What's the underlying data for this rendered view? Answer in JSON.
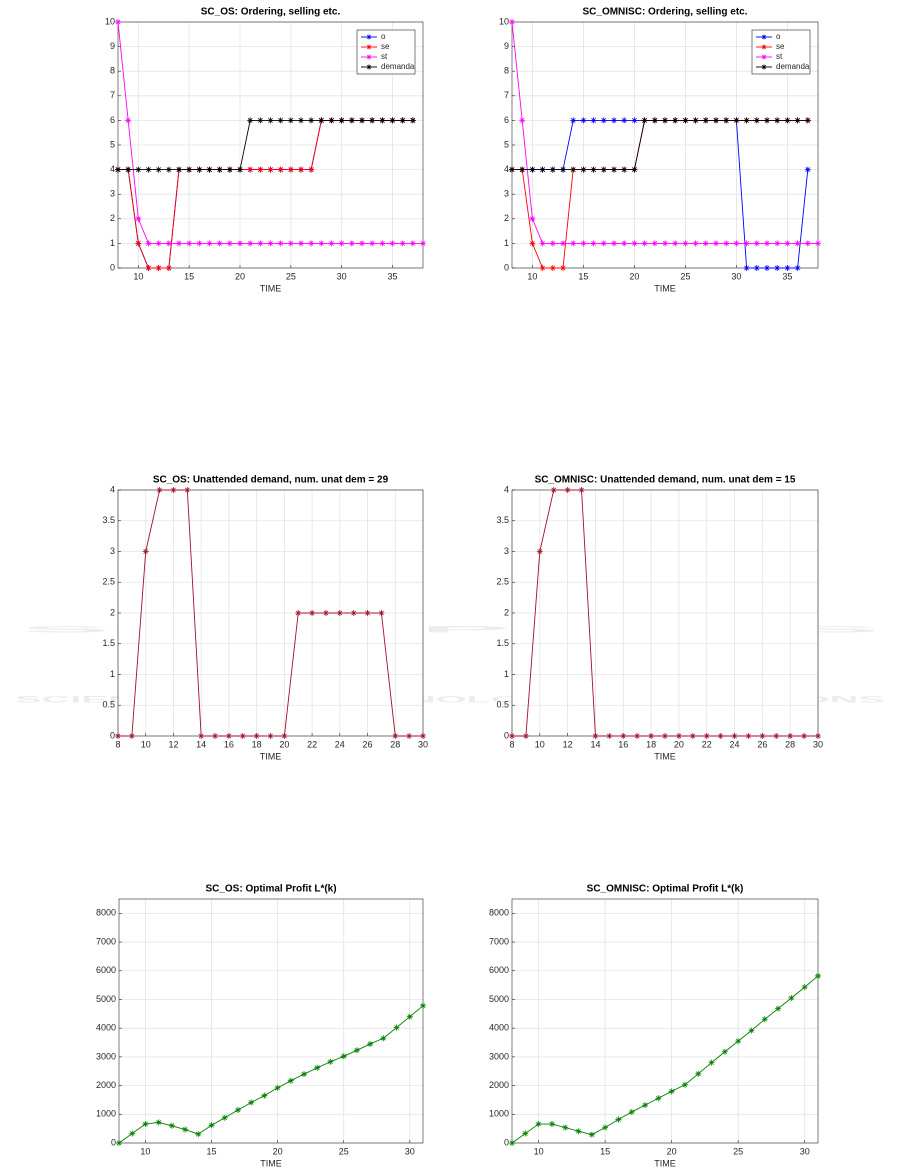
{
  "watermark": {
    "title": "SCITEPRESS",
    "subtitle": "SCIENCE AND TECHNOLOGY PUBLICATIONS"
  },
  "chart_data": [
    {
      "type": "line",
      "title": "SC_OS: Ordering, selling etc.",
      "xlabel": "TIME",
      "x": [
        8,
        9,
        10,
        11,
        12,
        13,
        14,
        15,
        16,
        17,
        18,
        19,
        20,
        21,
        22,
        23,
        24,
        25,
        26,
        27,
        28,
        29,
        30,
        31,
        32,
        33,
        34,
        35,
        36,
        37,
        38
      ],
      "series": [
        {
          "name": "o",
          "color": "#0000ff",
          "values": [
            4,
            4,
            1,
            0,
            0,
            0,
            4,
            4,
            4,
            4,
            4,
            4,
            4,
            4,
            4,
            4,
            4,
            4,
            4,
            4,
            6,
            6,
            6,
            6,
            6,
            6,
            6,
            6,
            6,
            6,
            null
          ]
        },
        {
          "name": "se",
          "color": "#ff0000",
          "values": [
            4,
            4,
            1,
            0,
            0,
            0,
            4,
            4,
            4,
            4,
            4,
            4,
            4,
            4,
            4,
            4,
            4,
            4,
            4,
            4,
            6,
            6,
            6,
            6,
            6,
            6,
            6,
            6,
            6,
            6,
            null
          ]
        },
        {
          "name": "st",
          "color": "#ff00ff",
          "values": [
            10,
            6,
            2,
            1,
            1,
            1,
            1,
            1,
            1,
            1,
            1,
            1,
            1,
            1,
            1,
            1,
            1,
            1,
            1,
            1,
            1,
            1,
            1,
            1,
            1,
            1,
            1,
            1,
            1,
            1,
            1
          ]
        },
        {
          "name": "demanda",
          "color": "#000000",
          "values": [
            4,
            4,
            4,
            4,
            4,
            4,
            4,
            4,
            4,
            4,
            4,
            4,
            4,
            6,
            6,
            6,
            6,
            6,
            6,
            6,
            6,
            6,
            6,
            6,
            6,
            6,
            6,
            6,
            6,
            6,
            null
          ]
        }
      ],
      "xlim": [
        8,
        38
      ],
      "ylim": [
        0,
        10
      ],
      "xticks": [
        10,
        15,
        20,
        25,
        30,
        35
      ],
      "yticks": [
        0,
        1,
        2,
        3,
        4,
        5,
        6,
        7,
        8,
        9,
        10
      ],
      "grid": true,
      "legend": "upper right"
    },
    {
      "type": "line",
      "title": "SC_OMNISC: Ordering, selling etc.",
      "xlabel": "TIME",
      "x": [
        8,
        9,
        10,
        11,
        12,
        13,
        14,
        15,
        16,
        17,
        18,
        19,
        20,
        21,
        22,
        23,
        24,
        25,
        26,
        27,
        28,
        29,
        30,
        31,
        32,
        33,
        34,
        35,
        36,
        37,
        38
      ],
      "series": [
        {
          "name": "o",
          "color": "#0000ff",
          "values": [
            4,
            4,
            4,
            4,
            4,
            4,
            6,
            6,
            6,
            6,
            6,
            6,
            6,
            6,
            6,
            6,
            6,
            6,
            6,
            6,
            6,
            6,
            6,
            0,
            0,
            0,
            0,
            0,
            0,
            4,
            null
          ]
        },
        {
          "name": "se",
          "color": "#ff0000",
          "values": [
            4,
            4,
            1,
            0,
            0,
            0,
            4,
            4,
            4,
            4,
            4,
            4,
            4,
            6,
            6,
            6,
            6,
            6,
            6,
            6,
            6,
            6,
            6,
            6,
            6,
            6,
            6,
            6,
            6,
            6,
            null
          ]
        },
        {
          "name": "st",
          "color": "#ff00ff",
          "values": [
            10,
            6,
            2,
            1,
            1,
            1,
            1,
            1,
            1,
            1,
            1,
            1,
            1,
            1,
            1,
            1,
            1,
            1,
            1,
            1,
            1,
            1,
            1,
            1,
            1,
            1,
            1,
            1,
            1,
            1,
            1
          ]
        },
        {
          "name": "demanda",
          "color": "#000000",
          "values": [
            4,
            4,
            4,
            4,
            4,
            4,
            4,
            4,
            4,
            4,
            4,
            4,
            4,
            6,
            6,
            6,
            6,
            6,
            6,
            6,
            6,
            6,
            6,
            6,
            6,
            6,
            6,
            6,
            6,
            6,
            null
          ]
        }
      ],
      "xlim": [
        8,
        38
      ],
      "ylim": [
        0,
        10
      ],
      "xticks": [
        10,
        15,
        20,
        25,
        30,
        35
      ],
      "yticks": [
        0,
        1,
        2,
        3,
        4,
        5,
        6,
        7,
        8,
        9,
        10
      ],
      "grid": true,
      "legend": "upper right"
    },
    {
      "type": "line",
      "title": "SC_OS: Unattended demand, num. unat dem = 29",
      "xlabel": "TIME",
      "x": [
        8,
        9,
        10,
        11,
        12,
        13,
        14,
        15,
        16,
        17,
        18,
        19,
        20,
        21,
        22,
        23,
        24,
        25,
        26,
        27,
        28,
        29,
        30
      ],
      "series": [
        {
          "color": "#a0102a",
          "values": [
            0,
            0,
            3,
            4,
            4,
            4,
            0,
            0,
            0,
            0,
            0,
            0,
            0,
            2,
            2,
            2,
            2,
            2,
            2,
            2,
            0,
            0,
            0
          ]
        }
      ],
      "xlim": [
        8,
        30
      ],
      "ylim": [
        0,
        4
      ],
      "xticks": [
        8,
        10,
        12,
        14,
        16,
        18,
        20,
        22,
        24,
        26,
        28,
        30
      ],
      "yticks": [
        0,
        0.5,
        1,
        1.5,
        2,
        2.5,
        3,
        3.5,
        4
      ],
      "grid": true
    },
    {
      "type": "line",
      "title": "SC_OMNISC: Unattended demand, num. unat dem = 15",
      "xlabel": "TIME",
      "x": [
        8,
        9,
        10,
        11,
        12,
        13,
        14,
        15,
        16,
        17,
        18,
        19,
        20,
        21,
        22,
        23,
        24,
        25,
        26,
        27,
        28,
        29,
        30
      ],
      "series": [
        {
          "color": "#a0102a",
          "values": [
            0,
            0,
            3,
            4,
            4,
            4,
            0,
            0,
            0,
            0,
            0,
            0,
            0,
            0,
            0,
            0,
            0,
            0,
            0,
            0,
            0,
            0,
            0
          ]
        }
      ],
      "xlim": [
        8,
        30
      ],
      "ylim": [
        0,
        4
      ],
      "xticks": [
        8,
        10,
        12,
        14,
        16,
        18,
        20,
        22,
        24,
        26,
        28,
        30
      ],
      "yticks": [
        0,
        0.5,
        1,
        1.5,
        2,
        2.5,
        3,
        3.5,
        4
      ],
      "grid": true
    },
    {
      "type": "line",
      "title": "SC_OS: Optimal Profit L*(k)",
      "xlabel": "TIME",
      "x": [
        8,
        9,
        10,
        11,
        12,
        13,
        14,
        15,
        16,
        17,
        18,
        19,
        20,
        21,
        22,
        23,
        24,
        25,
        26,
        27,
        28,
        29,
        30,
        31
      ],
      "series": [
        {
          "color": "#008000",
          "values": [
            0,
            330,
            660,
            720,
            600,
            470,
            310,
            620,
            880,
            1150,
            1410,
            1650,
            1920,
            2170,
            2400,
            2620,
            2830,
            3020,
            3230,
            3450,
            3650,
            4020,
            4400,
            4780
          ]
        }
      ],
      "xlim": [
        8,
        31
      ],
      "ylim": [
        0,
        8500
      ],
      "xticks": [
        10,
        15,
        20,
        25,
        30
      ],
      "yticks": [
        0,
        1000,
        2000,
        3000,
        4000,
        5000,
        6000,
        7000,
        8000
      ],
      "grid": true
    },
    {
      "type": "line",
      "title": "SC_OMNISC: Optimal Profit L*(k)",
      "xlabel": "TIME",
      "x": [
        8,
        9,
        10,
        11,
        12,
        13,
        14,
        15,
        16,
        17,
        18,
        19,
        20,
        21,
        22,
        23,
        24,
        25,
        26,
        27,
        28,
        29,
        30,
        31
      ],
      "series": [
        {
          "color": "#008000",
          "values": [
            0,
            330,
            660,
            660,
            540,
            410,
            290,
            540,
            820,
            1080,
            1320,
            1560,
            1800,
            2030,
            2410,
            2800,
            3180,
            3550,
            3920,
            4310,
            4680,
            5050,
            5430,
            5820
          ]
        }
      ],
      "xlim": [
        8,
        31
      ],
      "ylim": [
        0,
        8500
      ],
      "xticks": [
        10,
        15,
        20,
        25,
        30
      ],
      "yticks": [
        0,
        1000,
        2000,
        3000,
        4000,
        5000,
        6000,
        7000,
        8000
      ],
      "grid": true
    }
  ]
}
